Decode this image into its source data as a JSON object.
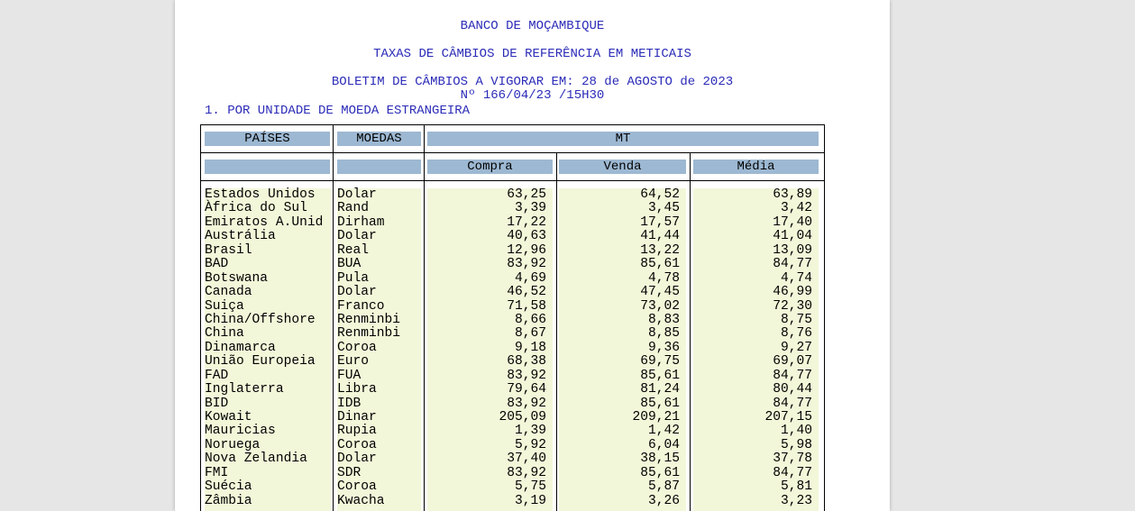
{
  "header": {
    "bank": "BANCO DE MOÇAMBIQUE",
    "title": "TAXAS DE CÂMBIOS DE REFERÊNCIA EM METICAIS",
    "bulletin": "BOLETIM DE CÂMBIOS A VIGORAR EM: 28 de AGOSTO de 2023",
    "number": "Nº 166/04/23 /15H30"
  },
  "section": "1. POR UNIDADE DE MOEDA ESTRANGEIRA",
  "table": {
    "col_paises": "PAÍSES",
    "col_moedas": "MOEDAS",
    "col_mt": "MT",
    "col_compra": "Compra",
    "col_venda": "Venda",
    "col_media": "Média",
    "rows": [
      {
        "pais": "Estados Unidos",
        "moeda": "Dolar",
        "compra": "63,25",
        "venda": "64,52",
        "media": "63,89"
      },
      {
        "pais": "Àfrica do Sul",
        "moeda": "Rand",
        "compra": "3,39",
        "venda": "3,45",
        "media": "3,42"
      },
      {
        "pais": "Emiratos A.Unid",
        "moeda": "Dirham",
        "compra": "17,22",
        "venda": "17,57",
        "media": "17,40"
      },
      {
        "pais": "Austrália",
        "moeda": "Dolar",
        "compra": "40,63",
        "venda": "41,44",
        "media": "41,04"
      },
      {
        "pais": "Brasil",
        "moeda": "Real",
        "compra": "12,96",
        "venda": "13,22",
        "media": "13,09"
      },
      {
        "pais": "BAD",
        "moeda": "BUA",
        "compra": "83,92",
        "venda": "85,61",
        "media": "84,77"
      },
      {
        "pais": "Botswana",
        "moeda": "Pula",
        "compra": "4,69",
        "venda": "4,78",
        "media": "4,74"
      },
      {
        "pais": "Canada",
        "moeda": "Dolar",
        "compra": "46,52",
        "venda": "47,45",
        "media": "46,99"
      },
      {
        "pais": "Suiça",
        "moeda": "Franco",
        "compra": "71,58",
        "venda": "73,02",
        "media": "72,30"
      },
      {
        "pais": "China/Offshore",
        "moeda": "Renminbi",
        "compra": "8,66",
        "venda": "8,83",
        "media": "8,75"
      },
      {
        "pais": "China",
        "moeda": "Renminbi",
        "compra": "8,67",
        "venda": "8,85",
        "media": "8,76"
      },
      {
        "pais": "Dinamarca",
        "moeda": "Coroa",
        "compra": "9,18",
        "venda": "9,36",
        "media": "9,27"
      },
      {
        "pais": "União Europeia",
        "moeda": "Euro",
        "compra": "68,38",
        "venda": "69,75",
        "media": "69,07"
      },
      {
        "pais": "FAD",
        "moeda": "FUA",
        "compra": "83,92",
        "venda": "85,61",
        "media": "84,77"
      },
      {
        "pais": "Inglaterra",
        "moeda": "Libra",
        "compra": "79,64",
        "venda": "81,24",
        "media": "80,44"
      },
      {
        "pais": "BID",
        "moeda": "IDB",
        "compra": "83,92",
        "venda": "85,61",
        "media": "84,77"
      },
      {
        "pais": "Kowait",
        "moeda": "Dinar",
        "compra": "205,09",
        "venda": "209,21",
        "media": "207,15"
      },
      {
        "pais": "Mauricias",
        "moeda": "Rupia",
        "compra": "1,39",
        "venda": "1,42",
        "media": "1,40"
      },
      {
        "pais": "Noruega",
        "moeda": "Coroa",
        "compra": "5,92",
        "venda": "6,04",
        "media": "5,98"
      },
      {
        "pais": "Nova Zelandia",
        "moeda": "Dolar",
        "compra": "37,40",
        "venda": "38,15",
        "media": "37,78"
      },
      {
        "pais": "FMI",
        "moeda": "SDR",
        "compra": "83,92",
        "venda": "85,61",
        "media": "84,77"
      },
      {
        "pais": "Suécia",
        "moeda": "Coroa",
        "compra": "5,75",
        "venda": "5,87",
        "media": "5,81"
      },
      {
        "pais": "Zâmbia",
        "moeda": "Kwacha",
        "compra": "3,19",
        "venda": "3,26",
        "media": "3,23"
      }
    ]
  }
}
